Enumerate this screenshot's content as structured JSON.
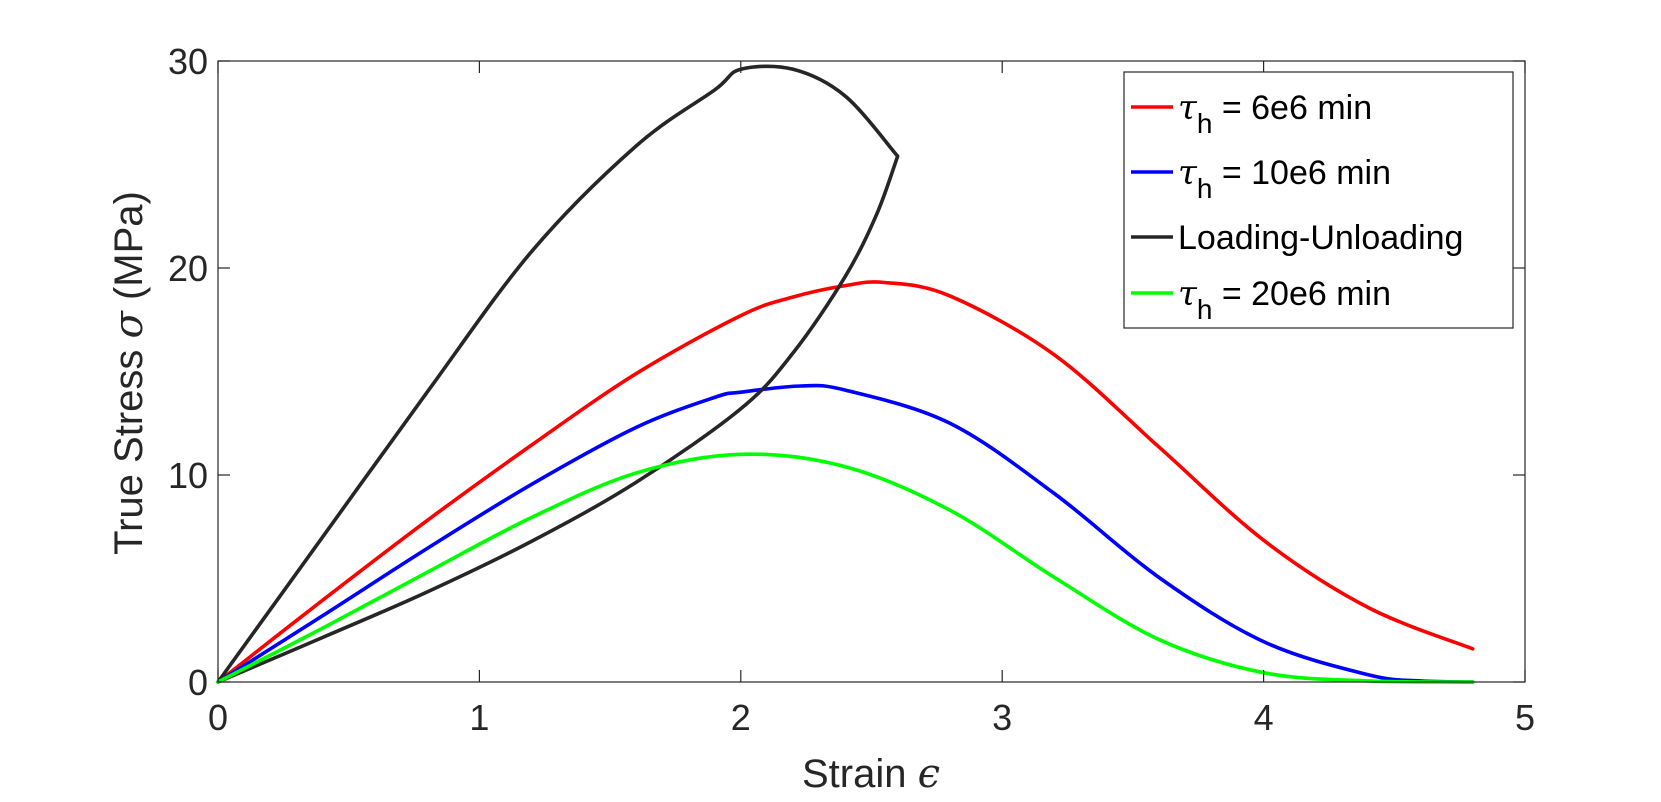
{
  "chart_data": {
    "type": "line",
    "title": "",
    "xlabel": "Strain",
    "xlabel_symbol": "ϵ",
    "ylabel": "True Stress",
    "ylabel_symbol": "σ",
    "ylabel_unit": "(MPa)",
    "xlim": [
      0,
      5
    ],
    "ylim": [
      0,
      30
    ],
    "xticks": [
      0,
      1,
      2,
      3,
      4,
      5
    ],
    "yticks": [
      0,
      10,
      20,
      30
    ],
    "xtick_labels": [
      "0",
      "1",
      "2",
      "3",
      "4",
      "5"
    ],
    "ytick_labels": [
      "0",
      "10",
      "20",
      "30"
    ],
    "grid": false,
    "legend_position": "top-right",
    "series": [
      {
        "name_symbol": "τ",
        "name_sub": "h",
        "name_rest": " = 6e6 min",
        "color": "#ff0000",
        "x": [
          0,
          0.4,
          0.8,
          1.2,
          1.6,
          2.0,
          2.2,
          2.4,
          2.55,
          2.8,
          3.2,
          3.6,
          4.0,
          4.4,
          4.8
        ],
        "y": [
          0,
          3.95,
          7.8,
          11.45,
          14.9,
          17.7,
          18.6,
          19.15,
          19.3,
          18.65,
          15.8,
          11.35,
          6.85,
          3.6,
          1.6
        ]
      },
      {
        "name_symbol": "τ",
        "name_sub": "h",
        "name_rest": " = 10e6 min",
        "color": "#0000ff",
        "x": [
          0,
          0.4,
          0.8,
          1.2,
          1.6,
          1.9,
          2.0,
          2.23,
          2.4,
          2.8,
          3.2,
          3.6,
          4.0,
          4.4,
          4.6,
          4.8
        ],
        "y": [
          0,
          3.2,
          6.45,
          9.55,
          12.3,
          13.75,
          14.0,
          14.3,
          14.1,
          12.5,
          9.1,
          5.05,
          1.95,
          0.35,
          0.05,
          0
        ]
      },
      {
        "name_symbol": "",
        "name_sub": "",
        "name_rest": "Loading-Unloading",
        "color": "#262626",
        "x": [
          0,
          0.4,
          0.8,
          1.2,
          1.6,
          1.9,
          2.0,
          2.2,
          2.4,
          2.6,
          2.52,
          2.4,
          2.2,
          2.0,
          1.6,
          1.2,
          0.8,
          0.4,
          0
        ],
        "y": [
          0,
          7.0,
          14.0,
          20.8,
          25.9,
          28.6,
          29.6,
          29.6,
          28.3,
          25.4,
          22.6,
          19.6,
          15.9,
          13.2,
          9.65,
          6.8,
          4.35,
          2.15,
          0
        ]
      },
      {
        "name_symbol": "τ",
        "name_sub": "h",
        "name_rest": " = 20e6 min",
        "color": "#00ff00",
        "x": [
          0,
          0.4,
          0.8,
          1.2,
          1.6,
          2.0,
          2.4,
          2.8,
          3.2,
          3.6,
          4.0,
          4.4,
          4.8
        ],
        "y": [
          0,
          2.6,
          5.3,
          7.95,
          10.1,
          11.0,
          10.4,
          8.3,
          5.05,
          2.05,
          0.45,
          0.05,
          0
        ]
      }
    ]
  }
}
